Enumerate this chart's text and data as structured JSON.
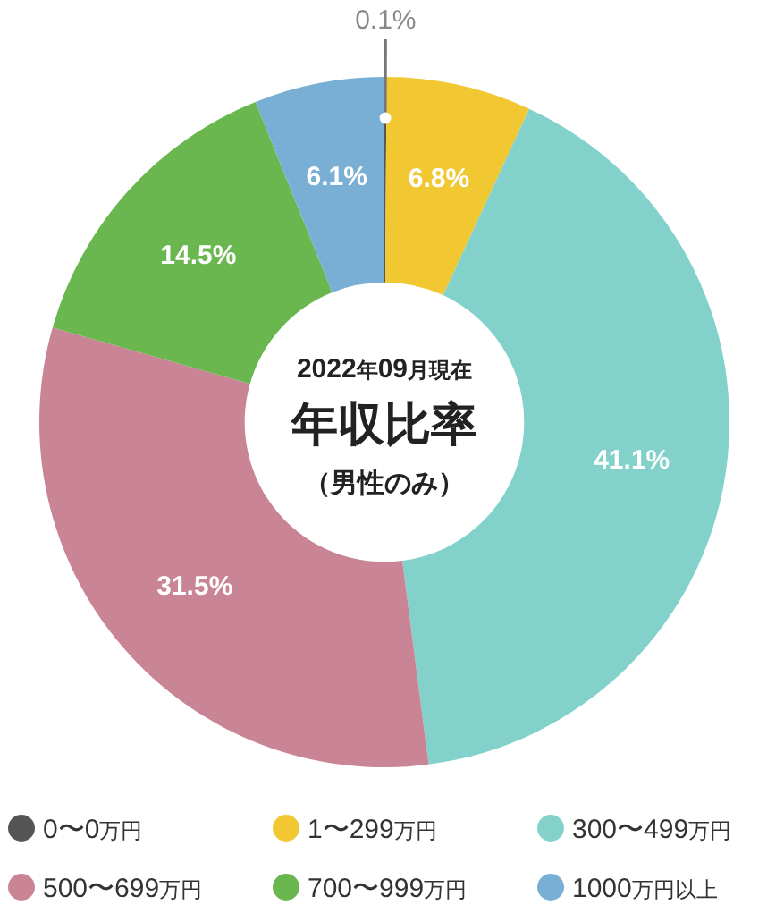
{
  "chart_data": {
    "type": "donut",
    "title": "年収比率",
    "subtitle": "2022年09月現在",
    "annotations": [
      "（男性のみ）"
    ],
    "categories": [
      "0〜0万円",
      "1〜299万円",
      "300〜499万円",
      "500〜699万円",
      "700〜999万円",
      "1000万円以上"
    ],
    "values": [
      0.1,
      6.8,
      41.1,
      31.5,
      14.5,
      6.1
    ],
    "colors": [
      "#555555",
      "#f2c832",
      "#82d2cb",
      "#c98495",
      "#6ab64f",
      "#79afd5"
    ],
    "value_labels": [
      "0.1%",
      "6.8%",
      "41.1%",
      "31.5%",
      "14.5%",
      "6.1%"
    ],
    "legend": "bottom"
  }
}
